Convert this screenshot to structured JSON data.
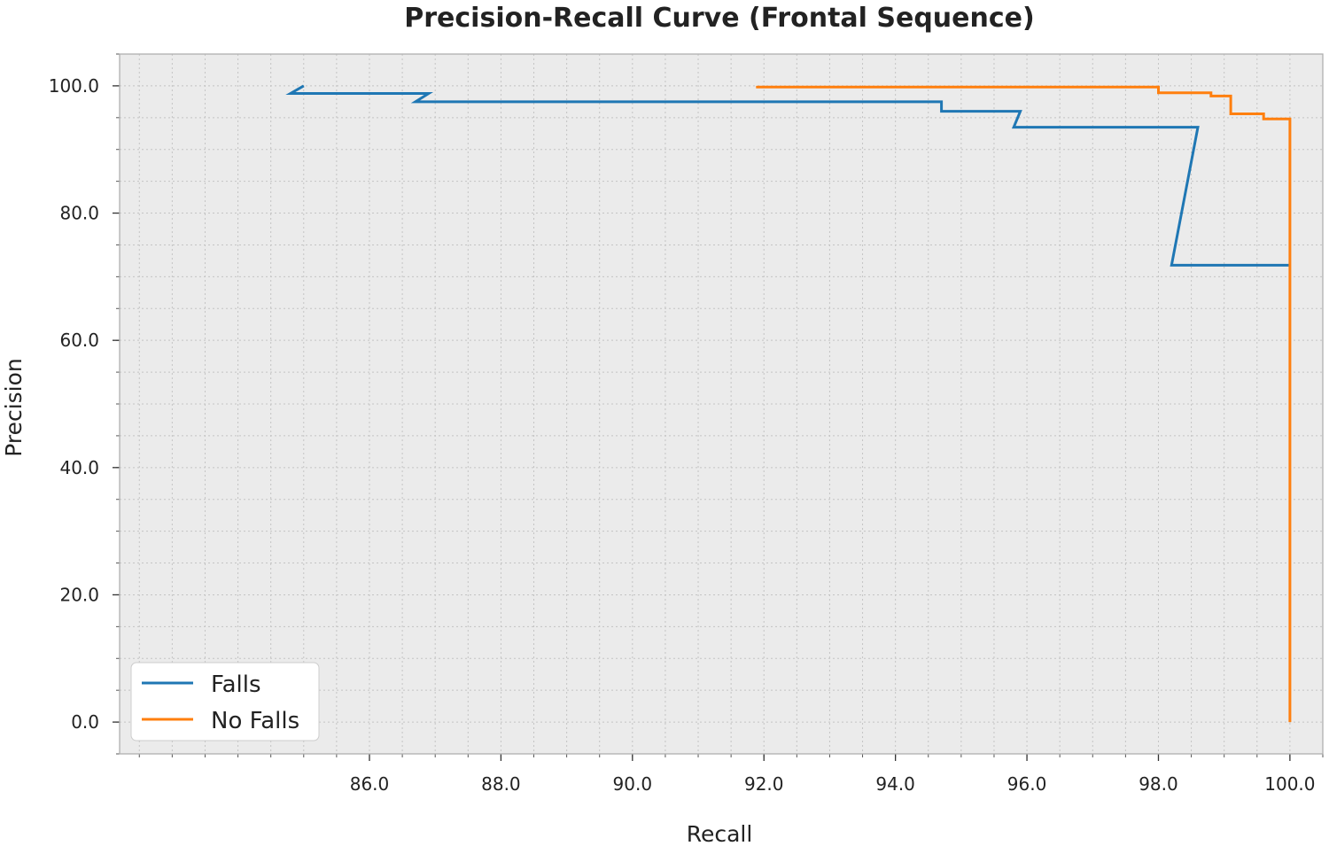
{
  "colors": {
    "background": "#ffffff",
    "plot_background": "#ebebeb",
    "grid": "#c4c4c4",
    "falls": "#1f77b4",
    "no_falls": "#ff7f0e"
  },
  "chart_data": {
    "type": "line",
    "title": "Precision-Recall Curve (Frontal Sequence)",
    "xlabel": "Recall",
    "ylabel": "Precision",
    "xlim": [
      82.2,
      100.5
    ],
    "ylim": [
      -5,
      105
    ],
    "xticks": [
      86.0,
      88.0,
      90.0,
      92.0,
      94.0,
      96.0,
      98.0,
      100.0
    ],
    "yticks": [
      0.0,
      20.0,
      40.0,
      60.0,
      80.0,
      100.0
    ],
    "x_minor_step": 0.5,
    "y_minor_step": 5,
    "grid": true,
    "legend_position": "lower-left",
    "series": [
      {
        "name": "Falls",
        "color": "#1f77b4",
        "points": [
          [
            85.0,
            100.0
          ],
          [
            84.8,
            98.8
          ],
          [
            86.9,
            98.8
          ],
          [
            86.7,
            97.5
          ],
          [
            94.7,
            97.5
          ],
          [
            94.7,
            96.0
          ],
          [
            95.9,
            96.0
          ],
          [
            95.8,
            93.5
          ],
          [
            98.6,
            93.5
          ],
          [
            98.2,
            71.8
          ],
          [
            100.0,
            71.8
          ]
        ]
      },
      {
        "name": "No Falls",
        "color": "#ff7f0e",
        "points": [
          [
            91.9,
            100.0
          ],
          [
            91.9,
            99.8
          ],
          [
            98.0,
            99.8
          ],
          [
            98.0,
            98.9
          ],
          [
            98.8,
            98.9
          ],
          [
            98.8,
            98.4
          ],
          [
            99.1,
            98.4
          ],
          [
            99.1,
            95.6
          ],
          [
            99.6,
            95.6
          ],
          [
            99.6,
            94.8
          ],
          [
            100.0,
            94.8
          ],
          [
            100.0,
            0.0
          ]
        ]
      }
    ]
  }
}
